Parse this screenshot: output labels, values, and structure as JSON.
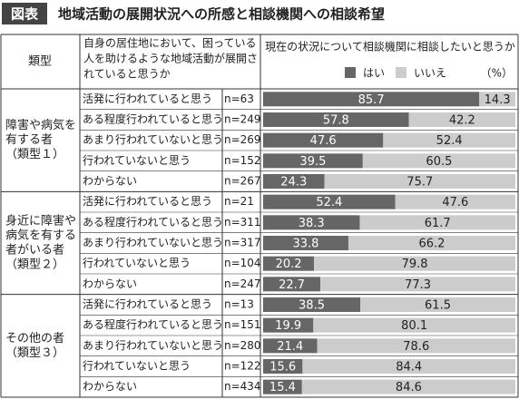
{
  "chart_data": {
    "type": "stacked_bar_table",
    "title_label": "図表",
    "title": "地域活動の展開状況への所感と相談機関への相談希望",
    "header_type": "類型",
    "header_question": [
      "自身の居住地において、困っている",
      "人を助けるような地域活動が展開さ",
      "れていると思うか"
    ],
    "header_chart": "現在の状況について相談機関に相談したいと思うか",
    "unit": "（%）",
    "xlim": [
      0,
      100
    ],
    "groups": [
      {
        "lines": [
          "障害や病気を",
          "有する者",
          "（類型１）"
        ],
        "start": 0,
        "count": 5
      },
      {
        "lines": [
          "身近に障害や",
          "病気を有する",
          "者がいる者",
          "（類型２）"
        ],
        "start": 5,
        "count": 5
      },
      {
        "lines": [
          "その他の者",
          "（類型３）"
        ],
        "start": 10,
        "count": 5
      }
    ],
    "categories": [
      "活発に行われていると思う",
      "ある程度行われていると思う",
      "あまり行われていないと思う",
      "行われていないと思う",
      "わからない",
      "活発に行われていると思う",
      "ある程度行われていると思う",
      "あまり行われていないと思う",
      "行われていないと思う",
      "わからない",
      "活発に行われていると思う",
      "ある程度行われていると思う",
      "あまり行われていないと思う",
      "行われていないと思う",
      "わからない"
    ],
    "n_labels": [
      "n=63",
      "n=249",
      "n=269",
      "n=152",
      "n=267",
      "n=21",
      "n=311",
      "n=317",
      "n=104",
      "n=247",
      "n=13",
      "n=151",
      "n=280",
      "n=122",
      "n=434"
    ],
    "series": [
      {
        "name": "はい",
        "color": "#666666",
        "text_color": "#ffffff",
        "values": [
          85.7,
          57.8,
          47.6,
          39.5,
          24.3,
          52.4,
          38.3,
          33.8,
          20.2,
          22.7,
          38.5,
          19.9,
          21.4,
          15.6,
          15.4
        ]
      },
      {
        "name": "いいえ",
        "color": "#cccccc",
        "text_color": "#222222",
        "values": [
          14.3,
          42.2,
          52.4,
          60.5,
          75.7,
          47.6,
          61.7,
          66.2,
          79.8,
          77.3,
          61.5,
          80.1,
          78.6,
          84.4,
          84.6
        ]
      }
    ]
  }
}
